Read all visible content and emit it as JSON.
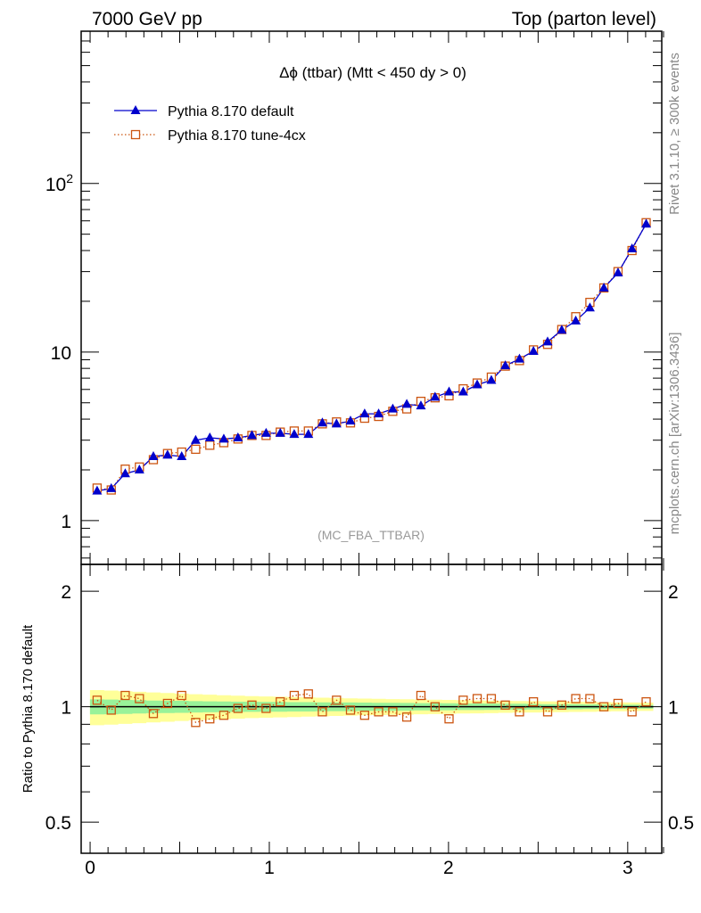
{
  "header": {
    "left": "7000 GeV pp",
    "right": "Top (parton level)"
  },
  "side_labels": {
    "rivet": "Rivet 3.1.10, ≥ 300k events",
    "source": "mcplots.cern.ch [arXiv:1306.3436]"
  },
  "chart_data": [
    {
      "type": "line",
      "title": "Δϕ (ttbar) (Mtt < 450 dy > 0)",
      "watermark": "(MC_FBA_TTBAR)",
      "yscale": "log",
      "xlim": [
        -0.05,
        3.19
      ],
      "ylim": [
        0.55,
        800
      ],
      "y_ticks": [
        {
          "value": 1,
          "label": "1"
        },
        {
          "value": 10,
          "label": "10"
        },
        {
          "value": 100,
          "label": "10",
          "sup": "2"
        }
      ],
      "x": [
        0.039,
        0.118,
        0.196,
        0.275,
        0.353,
        0.432,
        0.511,
        0.589,
        0.668,
        0.746,
        0.825,
        0.903,
        0.982,
        1.061,
        1.139,
        1.218,
        1.296,
        1.375,
        1.453,
        1.532,
        1.61,
        1.689,
        1.767,
        1.846,
        1.925,
        2.003,
        2.082,
        2.16,
        2.239,
        2.317,
        2.396,
        2.474,
        2.553,
        2.632,
        2.71,
        2.789,
        2.867,
        2.946,
        3.024,
        3.103
      ],
      "series": [
        {
          "name": "Pythia 8.170 default",
          "color": "#0000cc",
          "marker": "triangle",
          "line": "solid",
          "values": [
            1.5,
            1.55,
            1.9,
            2.0,
            2.4,
            2.45,
            2.4,
            3.0,
            3.1,
            3.05,
            3.1,
            3.2,
            3.3,
            3.3,
            3.25,
            3.25,
            3.8,
            3.75,
            3.9,
            4.3,
            4.3,
            4.6,
            4.9,
            4.8,
            5.4,
            5.8,
            5.8,
            6.4,
            6.8,
            8.3,
            9.1,
            10.1,
            11.5,
            13.5,
            15.3,
            18.3,
            24.0,
            29.5,
            41.0,
            57.5
          ]
        },
        {
          "name": "Pythia 8.170 tune-4cx",
          "color": "#cc5511",
          "marker": "open-square",
          "line": "dotted",
          "values": [
            1.56,
            1.52,
            2.02,
            2.08,
            2.3,
            2.5,
            2.55,
            2.65,
            2.8,
            2.9,
            3.05,
            3.2,
            3.2,
            3.35,
            3.4,
            3.4,
            3.75,
            3.85,
            3.8,
            4.05,
            4.15,
            4.45,
            4.6,
            5.1,
            5.35,
            5.5,
            6.05,
            6.55,
            7.1,
            8.25,
            8.9,
            10.3,
            11.1,
            13.6,
            16.2,
            19.7,
            24.0,
            30.0,
            40.0,
            58.5
          ]
        }
      ]
    },
    {
      "type": "line",
      "ylabel": "Ratio to Pythia 8.170 default",
      "xlim": [
        -0.05,
        3.19
      ],
      "ylim": [
        0.415,
        2.35
      ],
      "yscale": "log",
      "x_ticks": [
        {
          "value": 0,
          "label": "0"
        },
        {
          "value": 1,
          "label": "1"
        },
        {
          "value": 2,
          "label": "2"
        },
        {
          "value": 3,
          "label": "3"
        }
      ],
      "y_ticks": [
        {
          "value": 0.5,
          "label": "0.5"
        },
        {
          "value": 1,
          "label": "1"
        },
        {
          "value": 2,
          "label": "2"
        }
      ],
      "reference_line": 1,
      "band_colors": {
        "inner": "#99f299",
        "outer": "#ffff99"
      },
      "band_inner_halfwidth": [
        0.045,
        0.044,
        0.042,
        0.04,
        0.038,
        0.037,
        0.036,
        0.034,
        0.033,
        0.032,
        0.031,
        0.03,
        0.029,
        0.029,
        0.028,
        0.028,
        0.027,
        0.026,
        0.026,
        0.025,
        0.024,
        0.024,
        0.023,
        0.022,
        0.022,
        0.021,
        0.02,
        0.02,
        0.019,
        0.018,
        0.018,
        0.017,
        0.016,
        0.016,
        0.015,
        0.014,
        0.013,
        0.013,
        0.012,
        0.011
      ],
      "band_outer_halfwidth": [
        0.105,
        0.102,
        0.098,
        0.094,
        0.09,
        0.086,
        0.082,
        0.078,
        0.075,
        0.072,
        0.069,
        0.066,
        0.064,
        0.062,
        0.06,
        0.058,
        0.056,
        0.054,
        0.052,
        0.05,
        0.049,
        0.047,
        0.046,
        0.044,
        0.043,
        0.042,
        0.04,
        0.039,
        0.038,
        0.036,
        0.035,
        0.034,
        0.033,
        0.032,
        0.031,
        0.03,
        0.028,
        0.027,
        0.026,
        0.025
      ],
      "ratio_series": {
        "name": "Pythia 8.170 tune-4cx",
        "color": "#cc5511",
        "values": [
          1.04,
          0.98,
          1.07,
          1.05,
          0.96,
          1.02,
          1.07,
          0.91,
          0.93,
          0.95,
          0.99,
          1.01,
          0.99,
          1.03,
          1.07,
          1.08,
          0.97,
          1.04,
          0.98,
          0.95,
          0.97,
          0.97,
          0.94,
          1.07,
          1.0,
          0.93,
          1.04,
          1.05,
          1.05,
          1.01,
          0.97,
          1.03,
          0.97,
          1.01,
          1.05,
          1.05,
          1.0,
          1.02,
          0.97,
          1.03
        ]
      }
    }
  ]
}
